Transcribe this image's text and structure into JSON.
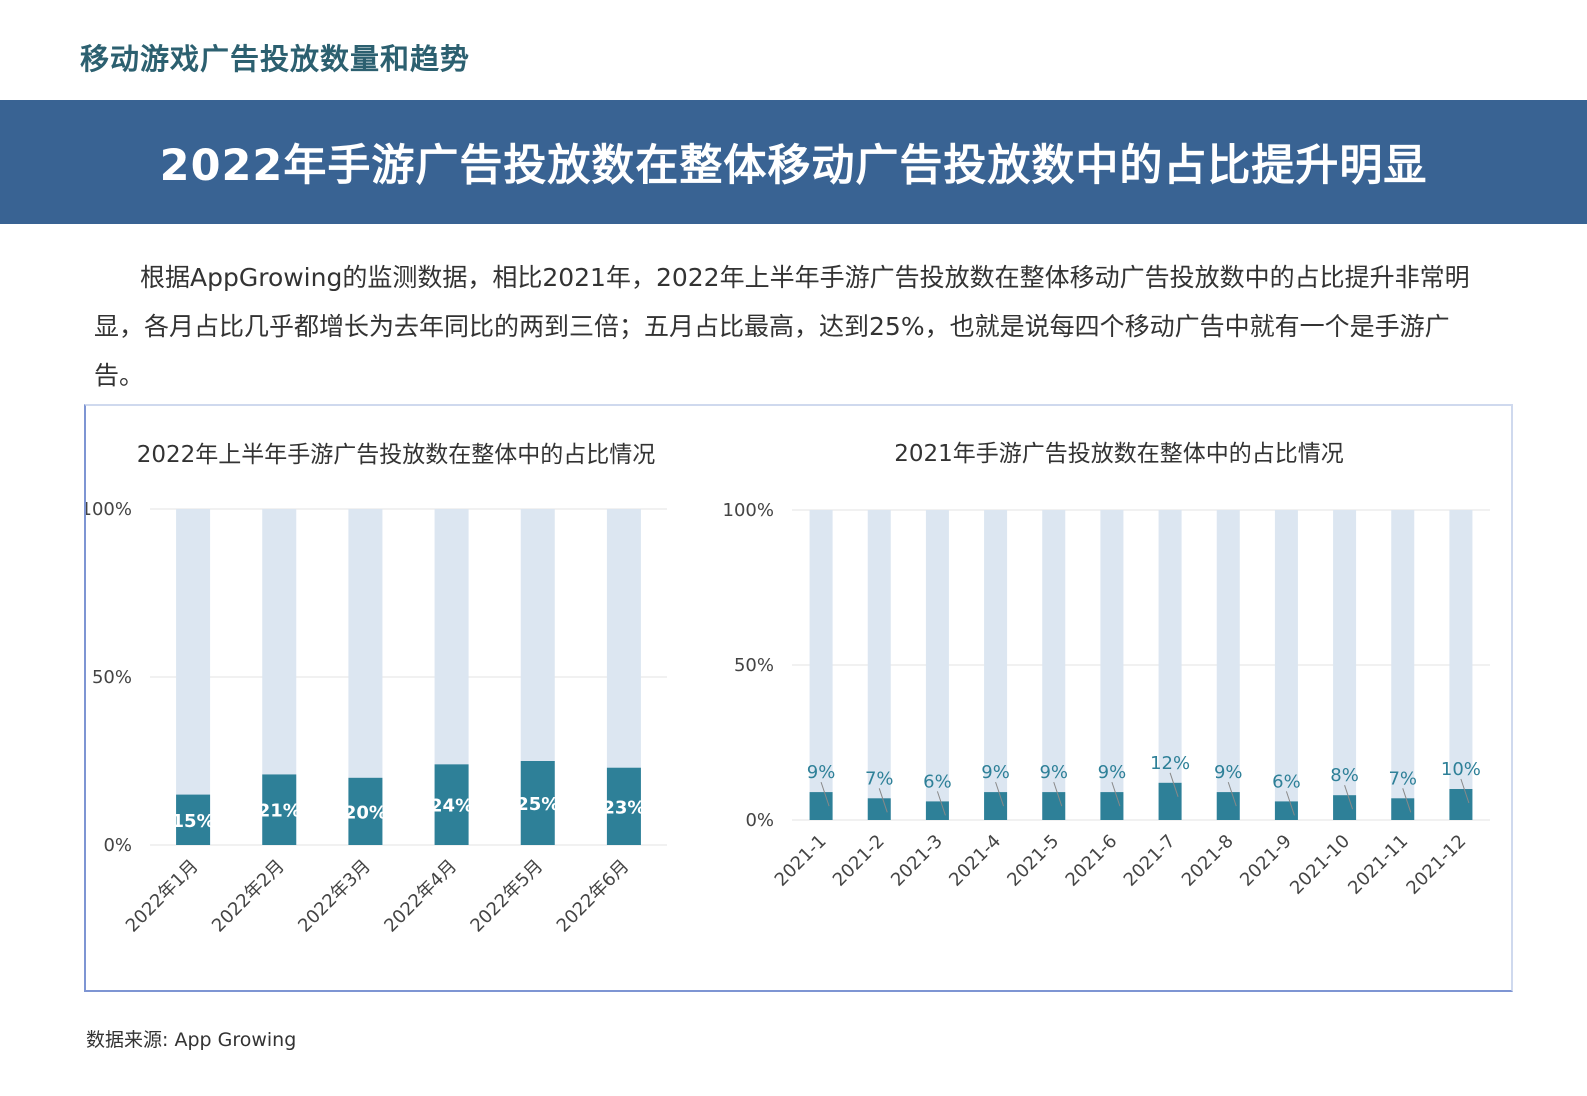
{
  "page": {
    "heading": "移动游戏广告投放数量和趋势",
    "banner_title": "2022年手游广告投放数在整体移动广告投放数中的占比提升明显",
    "intro": "根据AppGrowing的监测数据，相比2021年，2022年上半年手游广告投放数在整体移动广告投放数中的占比提升非常明显，各月占比几乎都增长为去年同比的两到三倍；五月占比最高，达到25%，也就是说每四个移动广告中就有一个是手游广告。",
    "source": "数据来源: App Growing"
  },
  "colors": {
    "banner": "#396393",
    "bar_fill": "#2e8098",
    "bar_bg": "#dce6f1",
    "value_label_outside": "#2e8098"
  },
  "chart_data": [
    {
      "type": "bar",
      "stacked": true,
      "title": "2022年上半年手游广告投放数在整体中的占比情况",
      "categories": [
        "2022年1月",
        "2022年2月",
        "2022年3月",
        "2022年4月",
        "2022年5月",
        "2022年6月"
      ],
      "values": [
        15,
        21,
        20,
        24,
        25,
        23
      ],
      "value_labels": [
        "15%",
        "21%",
        "20%",
        "24%",
        "25%",
        "23%"
      ],
      "ylim": [
        0,
        100
      ],
      "yticks": [
        "0%",
        "50%",
        "100%"
      ],
      "grid": true,
      "label_position": "inside"
    },
    {
      "type": "bar",
      "stacked": true,
      "title": "2021年手游广告投放数在整体中的占比情况",
      "categories": [
        "2021-1",
        "2021-2",
        "2021-3",
        "2021-4",
        "2021-5",
        "2021-6",
        "2021-7",
        "2021-8",
        "2021-9",
        "2021-10",
        "2021-11",
        "2021-12"
      ],
      "values": [
        9,
        7,
        6,
        9,
        9,
        9,
        12,
        9,
        6,
        8,
        7,
        10
      ],
      "value_labels": [
        "9%",
        "7%",
        "6%",
        "9%",
        "9%",
        "9%",
        "12%",
        "9%",
        "6%",
        "8%",
        "7%",
        "10%"
      ],
      "ylim": [
        0,
        100
      ],
      "yticks": [
        "0%",
        "50%",
        "100%"
      ],
      "grid": true,
      "label_position": "above"
    }
  ]
}
